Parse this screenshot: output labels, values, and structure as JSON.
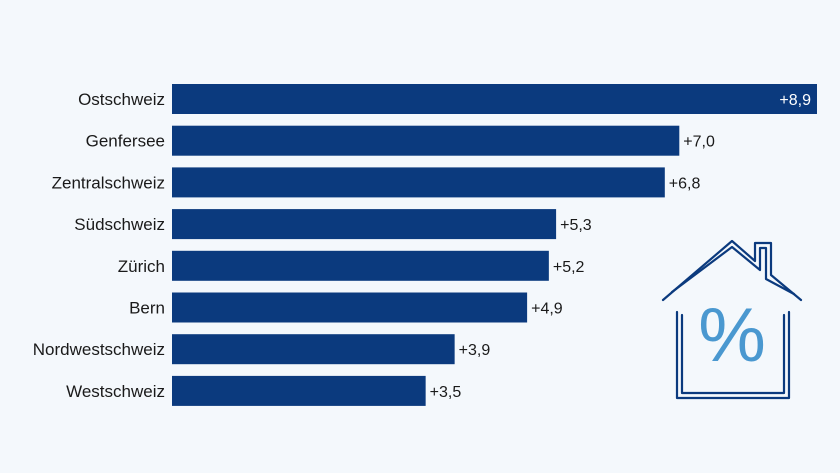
{
  "chart_data": {
    "type": "bar",
    "orientation": "horizontal",
    "categories": [
      "Ostschweiz",
      "Genfersee",
      "Zentralschweiz",
      "Südschweiz",
      "Zürich",
      "Bern",
      "Nordwestschweiz",
      "Westschweiz"
    ],
    "values": [
      8.9,
      7.0,
      6.8,
      5.3,
      5.2,
      4.9,
      3.9,
      3.5
    ],
    "value_labels": [
      "+8,9",
      "+7,0",
      "+6,8",
      "+5,3",
      "+5,2",
      "+4,9",
      "+3,9",
      "+3,5"
    ],
    "xlim": [
      0,
      8.9
    ],
    "grid": false,
    "legend": "none",
    "title": "",
    "xlabel": "",
    "ylabel": ""
  },
  "colors": {
    "bar": "#0b3a7e",
    "background": "#f4f8fc",
    "label_outside": "#1a1a1a",
    "label_inside": "#ffffff",
    "icon_outline": "#0b3a7e",
    "icon_percent": "#4a98d0"
  },
  "decoration": {
    "icon": "house-percent-icon",
    "symbol": "%"
  }
}
